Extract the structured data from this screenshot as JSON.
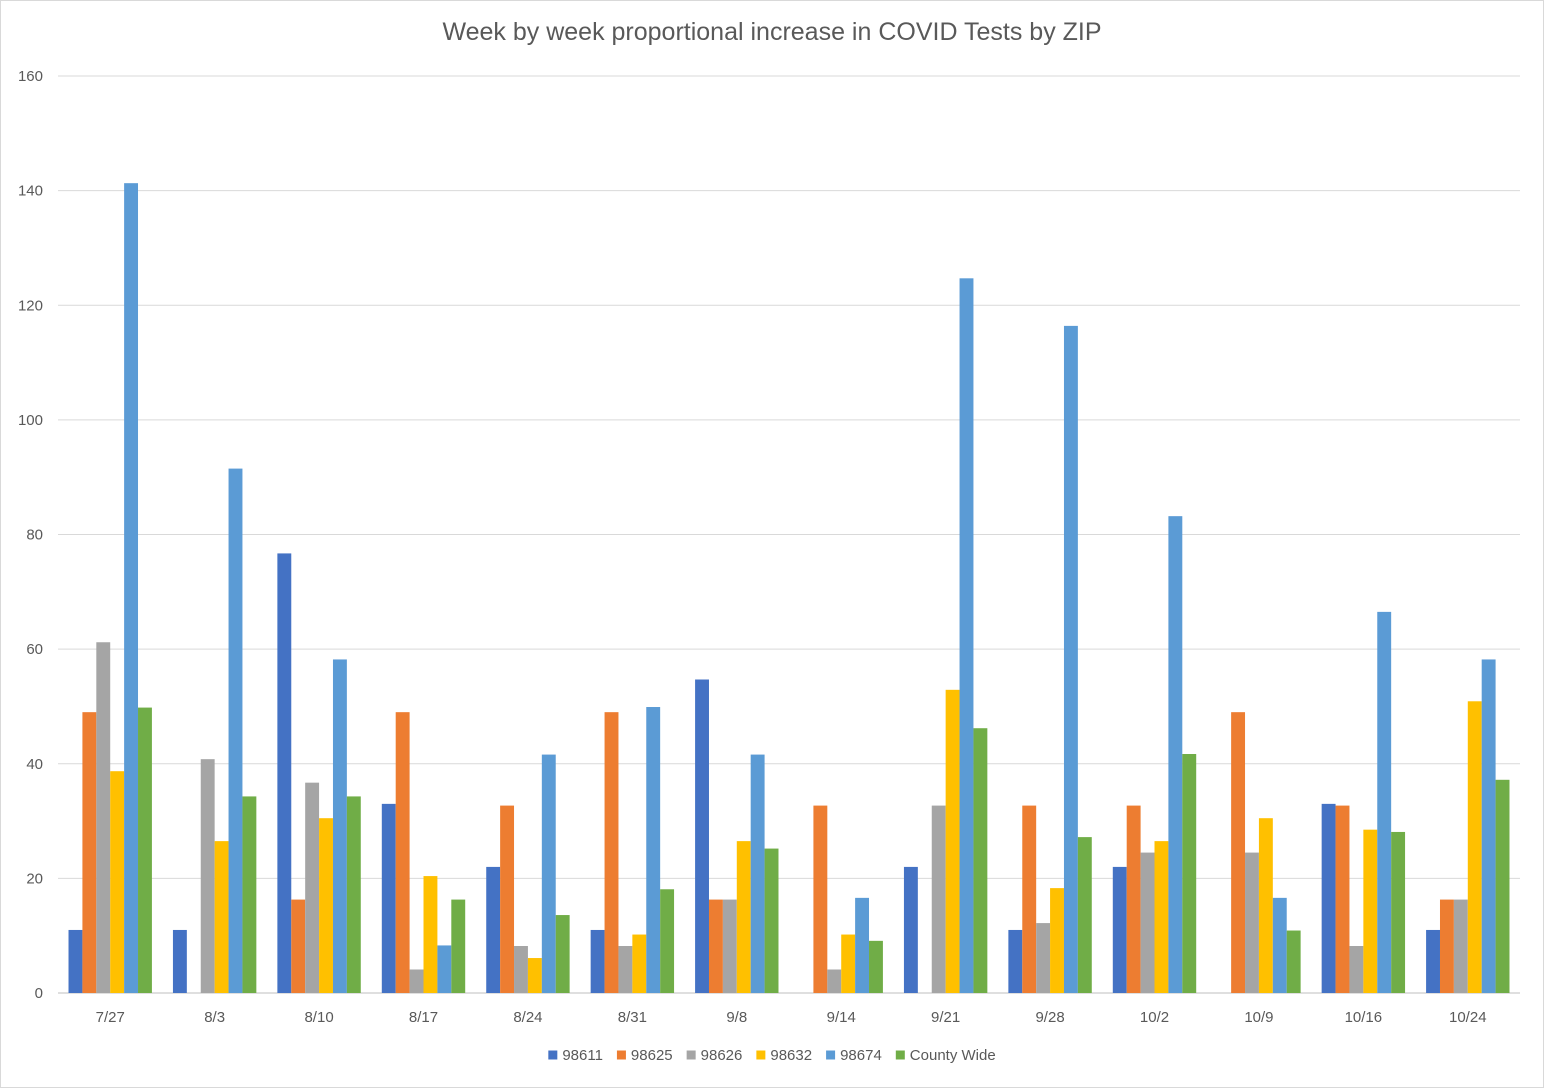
{
  "chart_data": {
    "type": "bar",
    "title": "Week by week proportional increase in COVID Tests by ZIP",
    "xlabel": "",
    "ylabel": "",
    "ylim": [
      0,
      160
    ],
    "yticks": [
      0,
      20,
      40,
      60,
      80,
      100,
      120,
      140,
      160
    ],
    "grid": true,
    "legend_position": "bottom",
    "categories": [
      "7/27",
      "8/3",
      "8/10",
      "8/17",
      "8/24",
      "8/31",
      "9/8",
      "9/14",
      "9/21",
      "9/28",
      "10/2",
      "10/9",
      "10/16",
      "10/24"
    ],
    "series": [
      {
        "name": "98611",
        "color": "#4472c4",
        "values": [
          11,
          11,
          76.7,
          33,
          22,
          11,
          54.7,
          0,
          22,
          11,
          22,
          0,
          33,
          11
        ]
      },
      {
        "name": "98625",
        "color": "#ed7d31",
        "values": [
          49,
          0,
          16.3,
          49,
          32.7,
          49,
          16.3,
          32.7,
          0,
          32.7,
          32.7,
          49,
          32.7,
          16.3
        ]
      },
      {
        "name": "98626",
        "color": "#a5a5a5",
        "values": [
          61.2,
          40.8,
          36.7,
          4.1,
          8.2,
          8.2,
          16.3,
          4.1,
          32.7,
          12.2,
          24.5,
          24.5,
          8.2,
          16.3
        ]
      },
      {
        "name": "98632",
        "color": "#ffc000",
        "values": [
          38.7,
          26.5,
          30.5,
          20.4,
          6.1,
          10.2,
          26.5,
          10.2,
          52.9,
          18.3,
          26.5,
          30.5,
          28.5,
          50.9
        ]
      },
      {
        "name": "98674",
        "color": "#5b9bd5",
        "values": [
          141.3,
          91.5,
          58.2,
          8.3,
          41.6,
          49.9,
          41.6,
          16.6,
          124.7,
          116.4,
          83.2,
          16.6,
          66.5,
          58.2
        ]
      },
      {
        "name": "County Wide",
        "color": "#70ad47",
        "values": [
          49.8,
          34.3,
          34.3,
          16.3,
          13.6,
          18.1,
          25.2,
          9.1,
          46.2,
          27.2,
          41.7,
          10.9,
          28.1,
          37.2
        ]
      }
    ]
  }
}
